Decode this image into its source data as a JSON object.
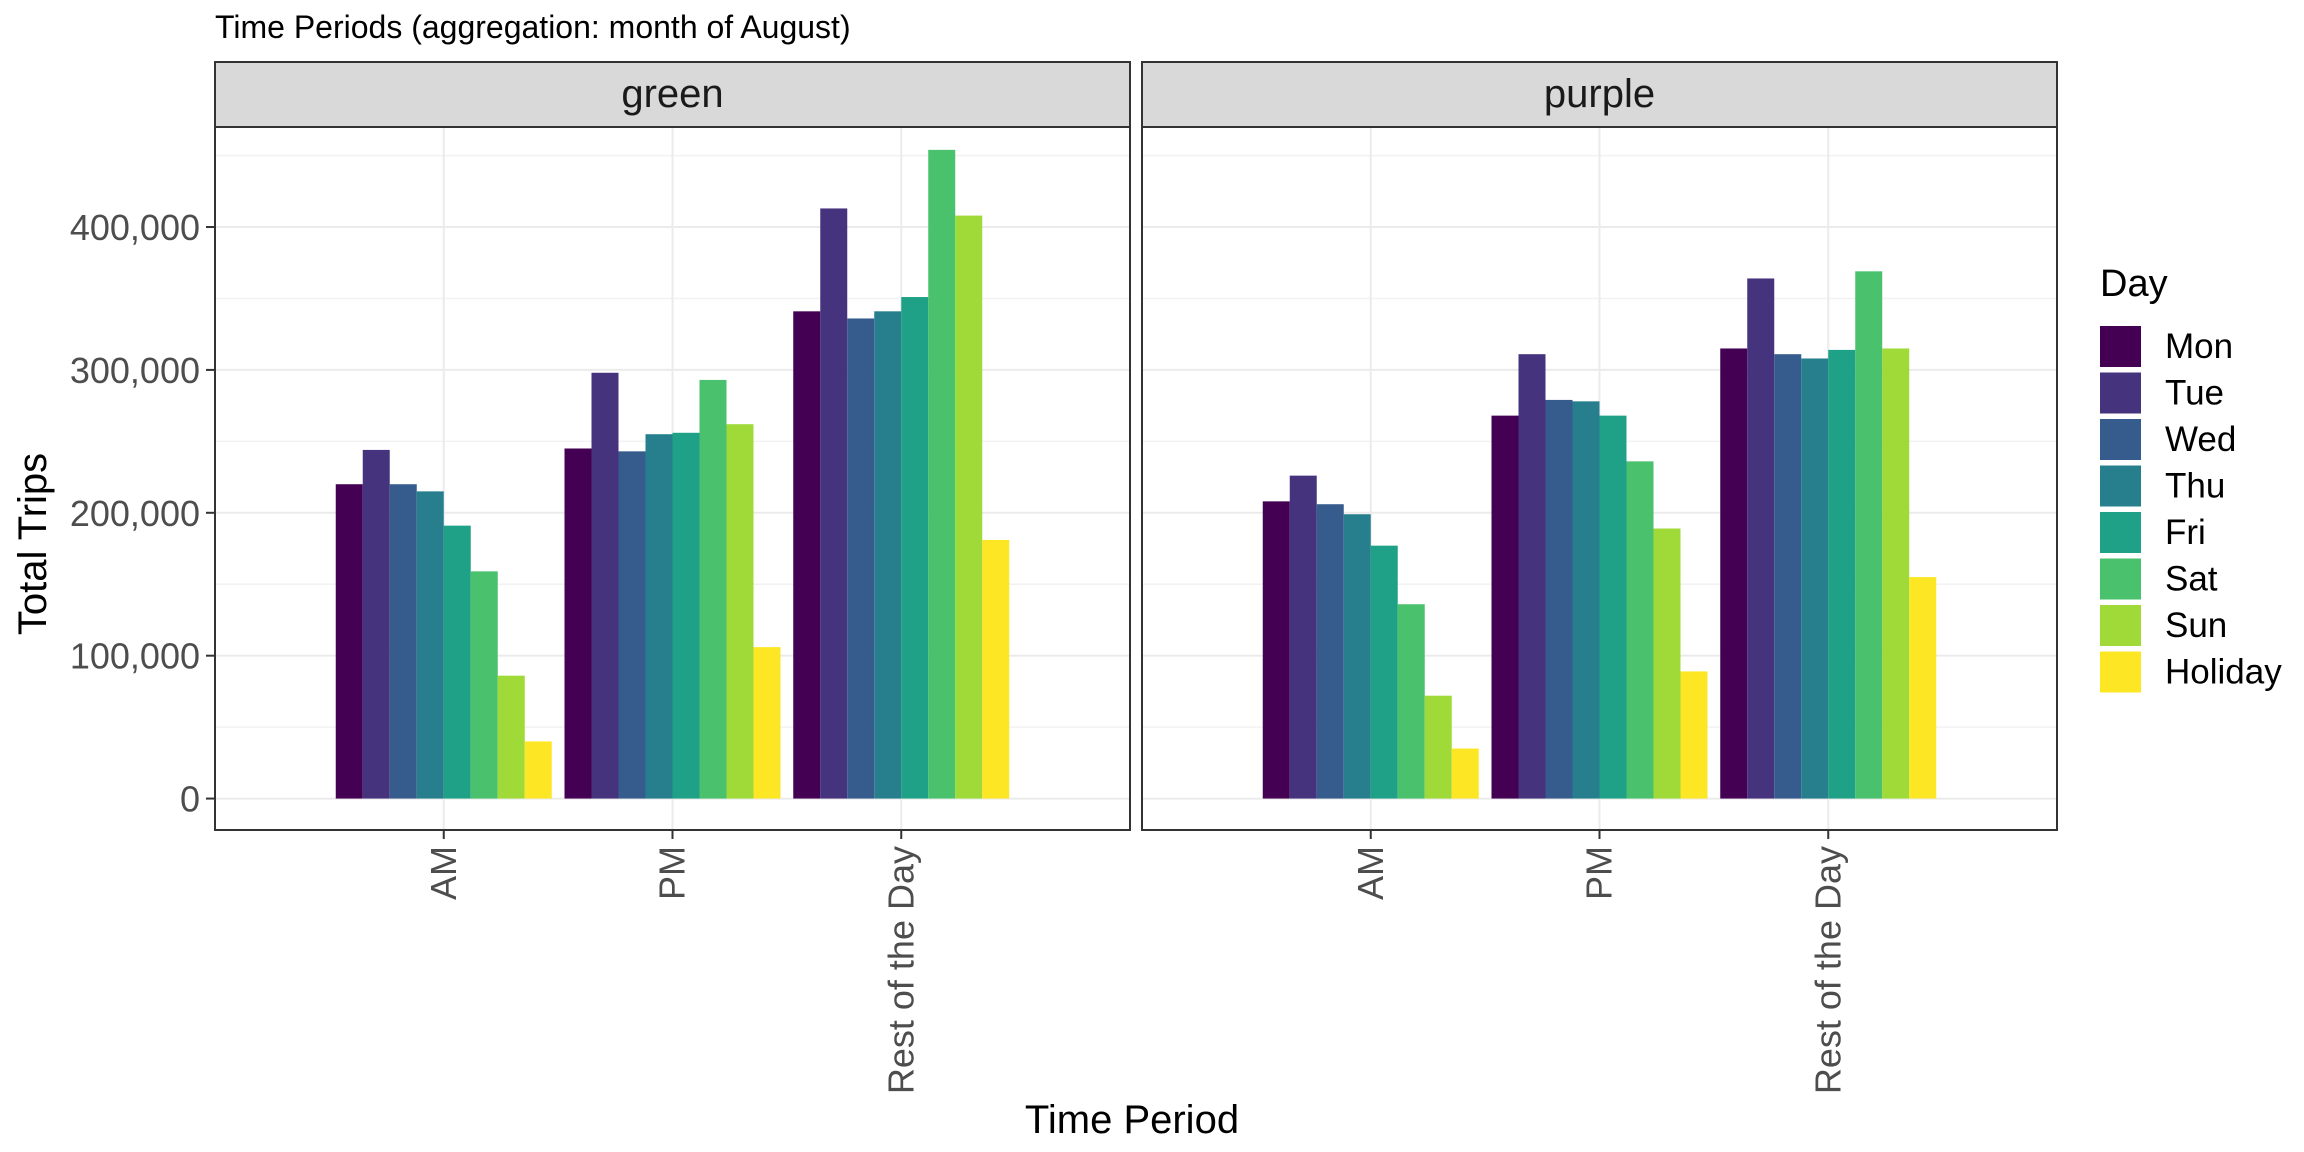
{
  "chart_data": {
    "type": "bar",
    "title": "Time Periods (aggregation: month of August)",
    "xlabel": "Time Period",
    "ylabel": "Total Trips",
    "categories": [
      "AM",
      "PM",
      "Rest of the Day"
    ],
    "ylim": [
      -22000,
      470000
    ],
    "yticks": [
      0,
      100000,
      200000,
      300000,
      400000
    ],
    "ytick_labels": [
      "0",
      "100,000",
      "200,000",
      "300,000",
      "400,000"
    ],
    "grid": true,
    "legend": {
      "title": "Day",
      "placement": "right",
      "entries": [
        "Mon",
        "Tue",
        "Wed",
        "Thu",
        "Fri",
        "Sat",
        "Sun",
        "Holiday"
      ]
    },
    "series_colors": [
      "#440154",
      "#46337E",
      "#365C8D",
      "#277F8E",
      "#1FA187",
      "#4AC16D",
      "#A0DA39",
      "#FDE725"
    ],
    "panels": [
      {
        "name": "green",
        "series": [
          {
            "name": "Mon",
            "values": [
              220000,
              245000,
              341000
            ]
          },
          {
            "name": "Tue",
            "values": [
              244000,
              298000,
              413000
            ]
          },
          {
            "name": "Wed",
            "values": [
              220000,
              243000,
              336000
            ]
          },
          {
            "name": "Thu",
            "values": [
              215000,
              255000,
              341000
            ]
          },
          {
            "name": "Fri",
            "values": [
              191000,
              256000,
              351000
            ]
          },
          {
            "name": "Sat",
            "values": [
              159000,
              293000,
              454000
            ]
          },
          {
            "name": "Sun",
            "values": [
              86000,
              262000,
              408000
            ]
          },
          {
            "name": "Holiday",
            "values": [
              40000,
              106000,
              181000
            ]
          }
        ]
      },
      {
        "name": "purple",
        "series": [
          {
            "name": "Mon",
            "values": [
              208000,
              268000,
              315000
            ]
          },
          {
            "name": "Tue",
            "values": [
              226000,
              311000,
              364000
            ]
          },
          {
            "name": "Wed",
            "values": [
              206000,
              279000,
              311000
            ]
          },
          {
            "name": "Thu",
            "values": [
              199000,
              278000,
              308000
            ]
          },
          {
            "name": "Fri",
            "values": [
              177000,
              268000,
              314000
            ]
          },
          {
            "name": "Sat",
            "values": [
              136000,
              236000,
              369000
            ]
          },
          {
            "name": "Sun",
            "values": [
              72000,
              189000,
              315000
            ]
          },
          {
            "name": "Holiday",
            "values": [
              35000,
              89000,
              155000
            ]
          }
        ]
      }
    ]
  }
}
